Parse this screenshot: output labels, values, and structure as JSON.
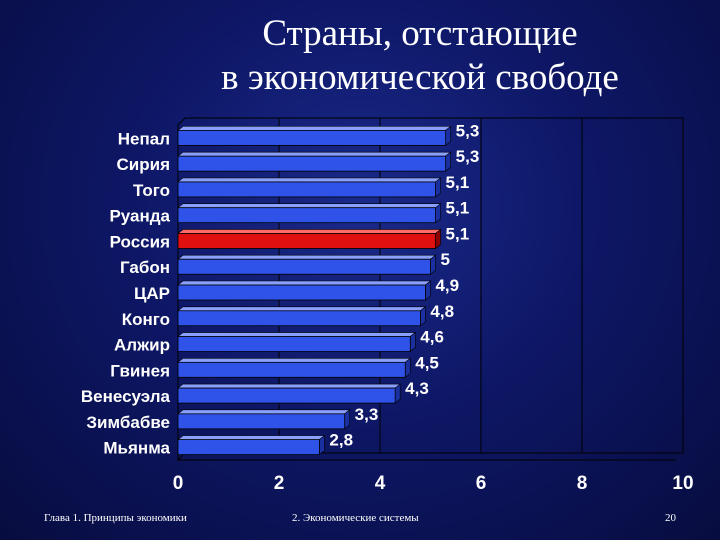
{
  "slide": {
    "title_line1": "Страны, отстающие",
    "title_line2": "в экономической свободе"
  },
  "footer": {
    "left": "Глава 1. Принципы экономики",
    "center": "2. Экономические системы",
    "page_number": "20"
  },
  "colors": {
    "background": "#0e1766",
    "bar": "#2f52e8",
    "bar_highlight": "#e01010",
    "text": "#ffffff"
  },
  "chart_data": {
    "type": "bar",
    "orientation": "horizontal",
    "categories": [
      "Непал",
      "Сирия",
      "Того",
      "Руанда",
      "Россия",
      "Габон",
      "ЦАР",
      "Конго",
      "Алжир",
      "Гвинея",
      "Венесуэла",
      "Зимбабве",
      "Мьянма"
    ],
    "values": [
      5.3,
      5.3,
      5.1,
      5.1,
      5.1,
      5,
      4.9,
      4.8,
      4.6,
      4.5,
      4.3,
      3.3,
      2.8
    ],
    "value_labels": [
      "5,3",
      "5,3",
      "5,1",
      "5,1",
      "5,1",
      "5",
      "4,9",
      "4,8",
      "4,6",
      "4,5",
      "4,3",
      "3,3",
      "2,8"
    ],
    "highlight": "Россия",
    "xlim": [
      0,
      10
    ],
    "x_ticks": [
      "0",
      "2",
      "4",
      "6",
      "8",
      "10"
    ],
    "grid": "vertical",
    "legend": "none"
  }
}
